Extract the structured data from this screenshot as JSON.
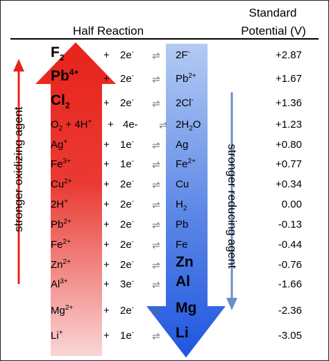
{
  "header": {
    "half_reaction": "Half Reaction",
    "standard_line1": "Standard",
    "standard_line2": "Potential (V)"
  },
  "side_labels": {
    "left": "stronger oxidizing agent",
    "right": "stronger reducing agent"
  },
  "colors": {
    "red_arrow": "#e8231c",
    "red_arrow_light": "#f7c9c9",
    "blue_arrow": "#1f56e0",
    "blue_arrow_light": "#a9c4f2",
    "small_red_arrow": "#e8231c",
    "small_blue_arrow": "#6a8fc8"
  },
  "reactions": [
    {
      "ox": "F",
      "ox_sub": "2",
      "ox_sup": "",
      "ox_bold": true,
      "plus": "+",
      "electrons": "2e",
      "e_sup": "-",
      "arrow": "⇌",
      "red": "2F",
      "red_sub": "",
      "red_sup": "-",
      "red_bold": false,
      "potential": "+2.87"
    },
    {
      "ox": "Pb",
      "ox_sub": "",
      "ox_sup": "4+",
      "ox_bold": true,
      "plus": "+",
      "electrons": "2e",
      "e_sup": "-",
      "arrow": "⇌",
      "red": "Pb",
      "red_sub": "",
      "red_sup": "2+",
      "red_bold": false,
      "potential": "+1.67"
    },
    {
      "ox": "Cl",
      "ox_sub": "2",
      "ox_sup": "",
      "ox_bold": true,
      "plus": "+",
      "electrons": "2e",
      "e_sup": "-",
      "arrow": "⇌",
      "red": "2Cl",
      "red_sub": "",
      "red_sup": "-",
      "red_bold": false,
      "potential": "+1.36"
    },
    {
      "ox": "O",
      "ox_sub": "2",
      "ox_sup": "",
      "ox_bold": false,
      "ox_extra": " + 4H",
      "ox_extra_sup": "+",
      "plus": "+",
      "electrons": "4e-",
      "e_sup": "",
      "arrow": "⇌",
      "red": "2H",
      "red_sub": "2",
      "red_sup": "",
      "red_tail": "O",
      "red_bold": false,
      "potential": "+1.23"
    },
    {
      "ox": "Ag",
      "ox_sub": "",
      "ox_sup": "+",
      "ox_bold": false,
      "plus": "+",
      "electrons": "1e",
      "e_sup": "-",
      "arrow": "⇌",
      "red": "Ag",
      "red_sub": "",
      "red_sup": "",
      "red_bold": false,
      "potential": "+0.80"
    },
    {
      "ox": "Fe",
      "ox_sub": "",
      "ox_sup": "3+",
      "ox_bold": false,
      "plus": "+",
      "electrons": "1e",
      "e_sup": "-",
      "arrow": "⇌",
      "red": "Fe",
      "red_sub": "",
      "red_sup": "2+",
      "red_bold": false,
      "potential": "+0.77"
    },
    {
      "ox": "Cu",
      "ox_sub": "",
      "ox_sup": "2+",
      "ox_bold": false,
      "plus": "+",
      "electrons": "2e",
      "e_sup": "-",
      "arrow": "⇌",
      "red": "Cu",
      "red_sub": "",
      "red_sup": "",
      "red_bold": false,
      "potential": "+0.34"
    },
    {
      "ox": "2H",
      "ox_sub": "",
      "ox_sup": "+",
      "ox_bold": false,
      "plus": "+",
      "electrons": "2e",
      "e_sup": "-",
      "arrow": "⇌",
      "red": "H",
      "red_sub": "2",
      "red_sup": "",
      "red_bold": false,
      "potential": "0.00"
    },
    {
      "ox": "Pb",
      "ox_sub": "",
      "ox_sup": "2+",
      "ox_bold": false,
      "plus": "+",
      "electrons": "2e",
      "e_sup": "-",
      "arrow": "⇌",
      "red": "Pb",
      "red_sub": "",
      "red_sup": "",
      "red_bold": false,
      "potential": "-0.13"
    },
    {
      "ox": "Fe",
      "ox_sub": "",
      "ox_sup": "2+",
      "ox_bold": false,
      "plus": "+",
      "electrons": "2e",
      "e_sup": "-",
      "arrow": "⇌",
      "red": "Fe",
      "red_sub": "",
      "red_sup": "",
      "red_bold": false,
      "potential": "-0.44"
    },
    {
      "ox": "Zn",
      "ox_sub": "",
      "ox_sup": "2+",
      "ox_bold": false,
      "plus": "+",
      "electrons": "2e",
      "e_sup": "-",
      "arrow": "⇌",
      "red": "Zn",
      "red_sub": "",
      "red_sup": "",
      "red_bold": true,
      "potential": "-0.76"
    },
    {
      "ox": "Al",
      "ox_sub": "",
      "ox_sup": "3+",
      "ox_bold": false,
      "plus": "+",
      "electrons": "3e",
      "e_sup": "-",
      "arrow": "⇌",
      "red": "Al",
      "red_sub": "",
      "red_sup": "",
      "red_bold": true,
      "potential": "-1.66"
    },
    {
      "ox": "Mg",
      "ox_sub": "",
      "ox_sup": "2+",
      "ox_bold": false,
      "plus": "+",
      "electrons": "2e",
      "e_sup": "-",
      "arrow": "⇌",
      "red": "Mg",
      "red_sub": "",
      "red_sup": "",
      "red_bold": true,
      "potential": "-2.36"
    },
    {
      "ox": "Li",
      "ox_sub": "",
      "ox_sup": "+",
      "ox_bold": false,
      "plus": "+",
      "electrons": "1e",
      "e_sup": "-",
      "arrow": "⇌",
      "red": "Li",
      "red_sub": "",
      "red_sup": "",
      "red_bold": true,
      "potential": "-3.05"
    }
  ]
}
